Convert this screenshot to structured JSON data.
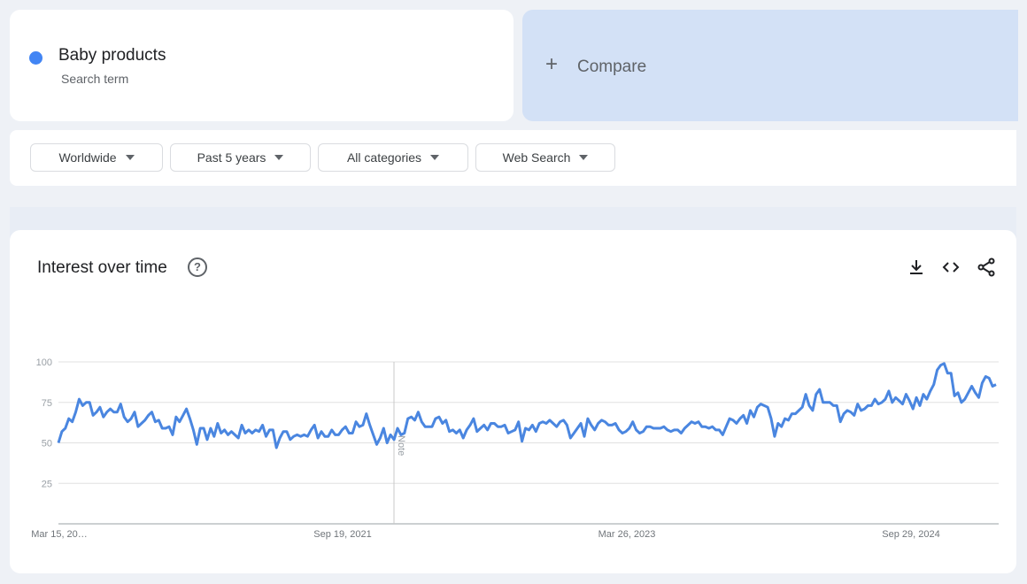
{
  "search_term": {
    "name": "Baby products",
    "subtitle": "Search term",
    "color": "#4285f4"
  },
  "compare": {
    "icon": "plus-icon",
    "plus": "+",
    "label": "Compare"
  },
  "filters": [
    {
      "label": "Worldwide"
    },
    {
      "label": "Past 5 years"
    },
    {
      "label": "All categories"
    },
    {
      "label": "Web Search"
    }
  ],
  "panel": {
    "title": "Interest over time",
    "help": "?",
    "tools": [
      "download-icon",
      "embed-code-icon",
      "share-icon"
    ]
  },
  "chart_data": {
    "type": "line",
    "title": "",
    "xlabel": "",
    "ylabel": "",
    "ylim": [
      0,
      100
    ],
    "yticks": [
      25,
      50,
      75,
      100
    ],
    "x_tick_labels": [
      "Mar 15, 20…",
      "Sep 19, 2021",
      "Mar 26, 2023",
      "Sep 29, 2024"
    ],
    "grid": true,
    "annotation": {
      "label": "Note",
      "near": "Sep 19, 2021"
    },
    "line_color": "#4a86e0",
    "series": [
      {
        "values": [
          50,
          57,
          59,
          65,
          63,
          69,
          77,
          73,
          75,
          75,
          67,
          69,
          72,
          66,
          69,
          71,
          69,
          69,
          74,
          66,
          63,
          65,
          69,
          60,
          62,
          64,
          67,
          69,
          63,
          64,
          59,
          59,
          60,
          55,
          66,
          63,
          67,
          71,
          65,
          58,
          49,
          59,
          59,
          52,
          59,
          54,
          62,
          56,
          58,
          55,
          57,
          55,
          53,
          61,
          56,
          58,
          56,
          58,
          57,
          61,
          54,
          58,
          58,
          47,
          53,
          57,
          57,
          52,
          54,
          55,
          54,
          55,
          54,
          58,
          61,
          53,
          57,
          54,
          54,
          58,
          55,
          55,
          58,
          60,
          56,
          56,
          63,
          60,
          61,
          68,
          61,
          55,
          49,
          53,
          59,
          50,
          55,
          52,
          59,
          55,
          56,
          65,
          66,
          64,
          69,
          63,
          60,
          60,
          60,
          65,
          66,
          62,
          64,
          57,
          58,
          56,
          58,
          53,
          58,
          61,
          65,
          57,
          59,
          61,
          58,
          62,
          62,
          60,
          60,
          61,
          56,
          57,
          58,
          63,
          51,
          59,
          58,
          61,
          57,
          62,
          63,
          62,
          64,
          62,
          60,
          63,
          64,
          61,
          53,
          56,
          59,
          62,
          54,
          65,
          61,
          58,
          62,
          64,
          63,
          61,
          61,
          62,
          58,
          56,
          57,
          59,
          63,
          58,
          56,
          57,
          60,
          60,
          59,
          59,
          59,
          60,
          58,
          57,
          58,
          58,
          56,
          59,
          61,
          63,
          62,
          63,
          60,
          60,
          59,
          60,
          58,
          58,
          55,
          60,
          65,
          64,
          62,
          65,
          67,
          62,
          70,
          66,
          72,
          74,
          73,
          72,
          65,
          54,
          62,
          60,
          65,
          64,
          68,
          68,
          70,
          72,
          80,
          73,
          70,
          80,
          83,
          75,
          75,
          75,
          73,
          73,
          63,
          68,
          70,
          69,
          67,
          74,
          70,
          71,
          73,
          73,
          77,
          74,
          75,
          77,
          82,
          75,
          78,
          76,
          74,
          80,
          76,
          71,
          78,
          73,
          80,
          77,
          82,
          86,
          95,
          98,
          99,
          93,
          93,
          79,
          81,
          75,
          77,
          81,
          85,
          81,
          78,
          87,
          91,
          90,
          85,
          86
        ]
      }
    ]
  }
}
